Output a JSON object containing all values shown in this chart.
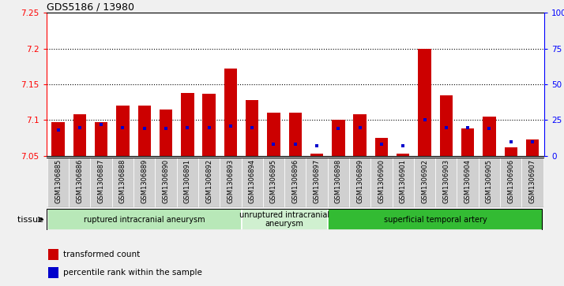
{
  "title": "GDS5186 / 13980",
  "samples": [
    "GSM1306885",
    "GSM1306886",
    "GSM1306887",
    "GSM1306888",
    "GSM1306889",
    "GSM1306890",
    "GSM1306891",
    "GSM1306892",
    "GSM1306893",
    "GSM1306894",
    "GSM1306895",
    "GSM1306896",
    "GSM1306897",
    "GSM1306898",
    "GSM1306899",
    "GSM1306900",
    "GSM1306901",
    "GSM1306902",
    "GSM1306903",
    "GSM1306904",
    "GSM1306905",
    "GSM1306906",
    "GSM1306907"
  ],
  "transformed_count": [
    7.097,
    7.108,
    7.097,
    7.12,
    7.12,
    7.115,
    7.138,
    7.137,
    7.172,
    7.128,
    7.11,
    7.11,
    7.053,
    7.1,
    7.108,
    7.075,
    7.053,
    7.2,
    7.135,
    7.088,
    7.105,
    7.062,
    7.073
  ],
  "percentile_rank": [
    18,
    20,
    22,
    20,
    19,
    19,
    20,
    20,
    21,
    20,
    8,
    8,
    7,
    19,
    20,
    8,
    7,
    25,
    20,
    20,
    19,
    10,
    10
  ],
  "ymin": 7.05,
  "ymax": 7.25,
  "yticks": [
    7.05,
    7.1,
    7.15,
    7.2,
    7.25
  ],
  "ytick_labels": [
    "7.05",
    "7.1",
    "7.15",
    "7.2",
    "7.25"
  ],
  "y2min": 0,
  "y2max": 100,
  "y2ticks": [
    0,
    25,
    50,
    75,
    100
  ],
  "y2tick_labels": [
    "0",
    "25",
    "50",
    "75",
    "100%"
  ],
  "bar_color": "#cc0000",
  "blue_color": "#0000cc",
  "cell_bg": "#d0d0d0",
  "groups": [
    {
      "label": "ruptured intracranial aneurysm",
      "start": 0,
      "end": 9,
      "color": "#b8e8b8"
    },
    {
      "label": "unruptured intracranial\naneurysm",
      "start": 9,
      "end": 13,
      "color": "#d0f0d0"
    },
    {
      "label": "superficial temporal artery",
      "start": 13,
      "end": 23,
      "color": "#33bb33"
    }
  ],
  "legend_items": [
    {
      "label": "transformed count",
      "color": "#cc0000"
    },
    {
      "label": "percentile rank within the sample",
      "color": "#0000cc"
    }
  ],
  "tissue_label": "tissue"
}
